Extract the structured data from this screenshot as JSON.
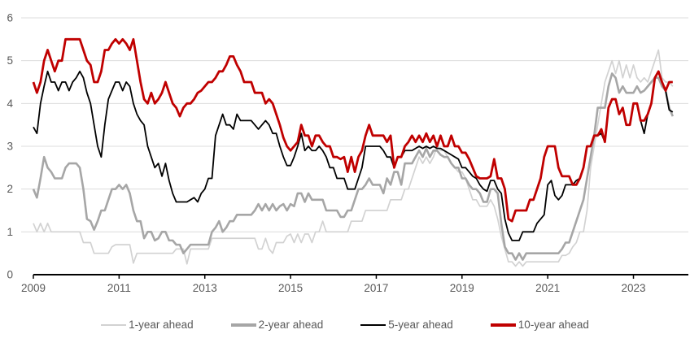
{
  "chart_data": {
    "type": "line",
    "title": "",
    "xlabel": "",
    "ylabel": "",
    "x_start_year": 2009,
    "frequency": "monthly",
    "xlim": [
      2009,
      2024.3
    ],
    "ylim": [
      0,
      6
    ],
    "y_ticks": [
      0,
      1,
      2,
      3,
      4,
      5,
      6
    ],
    "x_ticks": [
      2009,
      2011,
      2013,
      2015,
      2017,
      2019,
      2021,
      2023
    ],
    "grid": "horizontal",
    "gridline_color": "#dcdcdc",
    "axis_color": "#000000",
    "tick_label_color": "#595959",
    "legend_position": "bottom",
    "series": [
      {
        "name": "1-year ahead",
        "color": "#d2d2d2",
        "width": 1.7,
        "values": [
          1.2,
          1.0,
          1.2,
          1.0,
          1.2,
          1.0,
          1.0,
          1.0,
          1.0,
          1.0,
          1.0,
          1.0,
          1.0,
          1.0,
          0.75,
          0.75,
          0.75,
          0.5,
          0.5,
          0.5,
          0.5,
          0.5,
          0.65,
          0.7,
          0.7,
          0.7,
          0.7,
          0.7,
          0.27,
          0.5,
          0.5,
          0.5,
          0.5,
          0.5,
          0.5,
          0.5,
          0.5,
          0.5,
          0.5,
          0.5,
          0.6,
          0.6,
          0.6,
          0.25,
          0.6,
          0.6,
          0.6,
          0.6,
          0.6,
          0.6,
          0.85,
          0.85,
          0.85,
          0.85,
          0.85,
          0.85,
          0.85,
          0.85,
          0.85,
          0.85,
          0.85,
          0.85,
          0.85,
          0.6,
          0.6,
          0.85,
          0.6,
          0.5,
          0.75,
          0.75,
          0.75,
          0.9,
          0.95,
          0.75,
          0.95,
          0.75,
          0.95,
          0.95,
          0.75,
          1.0,
          1.0,
          1.25,
          1.0,
          1.0,
          1.0,
          1.0,
          1.0,
          1.0,
          1.0,
          1.25,
          1.25,
          1.25,
          1.25,
          1.5,
          1.5,
          1.5,
          1.5,
          1.5,
          1.5,
          1.5,
          1.75,
          1.75,
          1.75,
          1.75,
          2.0,
          2.0,
          2.25,
          2.5,
          2.75,
          2.6,
          2.75,
          2.6,
          2.75,
          3.0,
          2.9,
          2.9,
          2.75,
          2.6,
          2.5,
          2.4,
          2.4,
          2.25,
          2.0,
          1.75,
          1.75,
          1.6,
          1.6,
          1.6,
          1.75,
          1.6,
          1.3,
          0.9,
          0.6,
          0.3,
          0.3,
          0.2,
          0.3,
          0.2,
          0.3,
          0.3,
          0.3,
          0.3,
          0.3,
          0.3,
          0.3,
          0.3,
          0.3,
          0.3,
          0.45,
          0.45,
          0.5,
          0.65,
          0.75,
          1.0,
          1.0,
          1.5,
          2.5,
          3.0,
          3.5,
          4.0,
          4.5,
          4.75,
          5.0,
          4.7,
          5.0,
          4.6,
          4.9,
          4.6,
          4.9,
          4.6,
          4.5,
          4.6,
          4.5,
          4.75,
          5.0,
          5.25,
          4.6,
          4.5,
          4.5,
          4.4
        ]
      },
      {
        "name": "2-year ahead",
        "color": "#a6a6a6",
        "width": 2.6,
        "values": [
          2.0,
          1.8,
          2.25,
          2.75,
          2.5,
          2.4,
          2.25,
          2.25,
          2.25,
          2.5,
          2.6,
          2.6,
          2.6,
          2.5,
          2.0,
          1.3,
          1.25,
          1.05,
          1.25,
          1.5,
          1.5,
          1.75,
          2.0,
          2.0,
          2.1,
          2.0,
          2.1,
          1.9,
          1.5,
          1.25,
          1.25,
          0.85,
          1.0,
          1.0,
          0.8,
          0.85,
          1.0,
          1.0,
          0.8,
          0.8,
          0.7,
          0.7,
          0.5,
          0.6,
          0.7,
          0.7,
          0.7,
          0.7,
          0.7,
          0.7,
          1.0,
          1.1,
          1.25,
          1.0,
          1.1,
          1.25,
          1.25,
          1.4,
          1.4,
          1.4,
          1.4,
          1.4,
          1.5,
          1.65,
          1.5,
          1.65,
          1.5,
          1.65,
          1.5,
          1.6,
          1.65,
          1.5,
          1.65,
          1.6,
          1.9,
          1.9,
          1.7,
          1.9,
          1.75,
          1.75,
          1.75,
          1.75,
          1.5,
          1.5,
          1.5,
          1.5,
          1.35,
          1.35,
          1.5,
          1.5,
          1.75,
          2.0,
          2.0,
          2.1,
          2.25,
          2.1,
          2.1,
          2.1,
          1.9,
          2.25,
          2.1,
          2.4,
          2.4,
          2.1,
          2.6,
          2.6,
          2.6,
          2.75,
          2.9,
          2.75,
          2.95,
          2.75,
          2.9,
          2.9,
          2.8,
          2.75,
          2.75,
          2.6,
          2.5,
          2.5,
          2.25,
          2.25,
          2.1,
          2.0,
          2.0,
          1.9,
          1.7,
          1.7,
          2.0,
          2.0,
          1.9,
          1.2,
          0.65,
          0.5,
          0.5,
          0.35,
          0.5,
          0.35,
          0.5,
          0.5,
          0.5,
          0.5,
          0.5,
          0.5,
          0.5,
          0.5,
          0.5,
          0.5,
          0.6,
          0.75,
          0.75,
          1.0,
          1.25,
          1.5,
          1.75,
          2.25,
          2.75,
          3.25,
          3.9,
          3.9,
          3.9,
          4.4,
          4.7,
          4.6,
          4.25,
          4.4,
          4.25,
          4.25,
          4.25,
          4.4,
          4.25,
          4.3,
          4.4,
          4.5,
          4.6,
          4.6,
          4.4,
          4.3,
          3.9,
          3.7
        ]
      },
      {
        "name": "5-year ahead",
        "color": "#000000",
        "width": 1.8,
        "values": [
          3.45,
          3.3,
          4.0,
          4.4,
          4.75,
          4.5,
          4.5,
          4.3,
          4.5,
          4.5,
          4.3,
          4.5,
          4.6,
          4.75,
          4.6,
          4.25,
          4.0,
          3.5,
          3.0,
          2.75,
          3.5,
          4.1,
          4.3,
          4.5,
          4.5,
          4.3,
          4.5,
          4.4,
          4.0,
          3.75,
          3.6,
          3.5,
          3.0,
          2.75,
          2.5,
          2.6,
          2.3,
          2.6,
          2.2,
          1.9,
          1.7,
          1.7,
          1.7,
          1.7,
          1.75,
          1.8,
          1.7,
          1.9,
          2.0,
          2.25,
          2.25,
          3.25,
          3.5,
          3.75,
          3.5,
          3.5,
          3.4,
          3.75,
          3.6,
          3.6,
          3.6,
          3.6,
          3.5,
          3.4,
          3.5,
          3.6,
          3.5,
          3.3,
          3.3,
          3.0,
          2.75,
          2.55,
          2.55,
          2.75,
          3.0,
          3.3,
          2.9,
          3.0,
          2.9,
          2.9,
          3.0,
          2.9,
          2.75,
          2.5,
          2.5,
          2.25,
          2.25,
          2.25,
          2.0,
          2.0,
          2.0,
          2.25,
          2.5,
          3.0,
          3.0,
          3.0,
          3.0,
          3.0,
          2.9,
          2.75,
          2.75,
          2.5,
          2.75,
          2.75,
          2.9,
          2.9,
          2.9,
          2.95,
          3.0,
          2.95,
          3.0,
          2.95,
          3.0,
          2.95,
          2.95,
          2.9,
          2.85,
          2.8,
          2.75,
          2.7,
          2.5,
          2.5,
          2.4,
          2.3,
          2.25,
          2.1,
          2.0,
          1.95,
          2.2,
          2.2,
          2.0,
          1.9,
          1.3,
          0.97,
          0.8,
          0.8,
          0.8,
          1.0,
          1.0,
          1.0,
          1.0,
          1.2,
          1.3,
          1.4,
          2.1,
          2.2,
          1.85,
          1.75,
          1.85,
          2.1,
          2.1,
          2.1,
          2.2,
          2.25,
          2.5,
          3.0,
          3.0,
          3.25,
          3.25,
          3.3,
          3.1,
          3.9,
          4.1,
          4.1,
          3.75,
          3.9,
          3.5,
          3.5,
          4.0,
          4.0,
          3.6,
          3.3,
          3.75,
          4.0,
          4.6,
          4.75,
          4.5,
          4.3,
          3.85,
          3.8
        ]
      },
      {
        "name": "10-year ahead",
        "color": "#c00000",
        "width": 2.8,
        "values": [
          4.5,
          4.25,
          4.5,
          5.0,
          5.25,
          5.0,
          4.75,
          5.0,
          5.0,
          5.5,
          5.5,
          5.5,
          5.5,
          5.5,
          5.25,
          5.0,
          4.9,
          4.5,
          4.5,
          4.75,
          5.25,
          5.25,
          5.4,
          5.5,
          5.4,
          5.5,
          5.4,
          5.25,
          5.5,
          5.0,
          4.5,
          4.1,
          4.0,
          4.25,
          4.0,
          4.1,
          4.25,
          4.5,
          4.25,
          4.0,
          3.9,
          3.7,
          3.9,
          4.0,
          4.0,
          4.1,
          4.25,
          4.3,
          4.4,
          4.5,
          4.5,
          4.6,
          4.75,
          4.75,
          4.9,
          5.1,
          5.1,
          4.9,
          4.75,
          4.5,
          4.5,
          4.5,
          4.25,
          4.25,
          4.25,
          4.0,
          4.1,
          4.0,
          3.75,
          3.5,
          3.2,
          3.0,
          2.9,
          3.0,
          3.1,
          3.5,
          3.25,
          3.25,
          3.0,
          3.25,
          3.25,
          3.1,
          3.0,
          3.0,
          2.75,
          2.75,
          2.7,
          2.75,
          2.4,
          2.75,
          2.4,
          2.75,
          2.9,
          3.25,
          3.5,
          3.25,
          3.25,
          3.25,
          3.25,
          3.1,
          3.25,
          2.5,
          2.75,
          2.75,
          3.0,
          3.1,
          3.25,
          3.1,
          3.25,
          3.1,
          3.3,
          3.1,
          3.25,
          3.0,
          3.25,
          3.0,
          3.0,
          3.25,
          3.0,
          3.0,
          2.85,
          2.85,
          2.7,
          2.5,
          2.3,
          2.25,
          2.25,
          2.25,
          2.3,
          2.7,
          2.25,
          2.25,
          2.0,
          1.3,
          1.25,
          1.5,
          1.5,
          1.5,
          1.5,
          1.75,
          1.75,
          2.0,
          2.25,
          2.75,
          3.0,
          3.0,
          3.0,
          2.5,
          2.3,
          2.3,
          2.3,
          2.1,
          2.1,
          2.25,
          2.5,
          3.0,
          3.0,
          3.25,
          3.25,
          3.4,
          3.1,
          3.9,
          4.1,
          4.1,
          3.75,
          3.9,
          3.5,
          3.5,
          4.0,
          4.0,
          3.6,
          3.6,
          3.75,
          4.0,
          4.6,
          4.75,
          4.5,
          4.3,
          4.5,
          4.5
        ]
      }
    ]
  }
}
